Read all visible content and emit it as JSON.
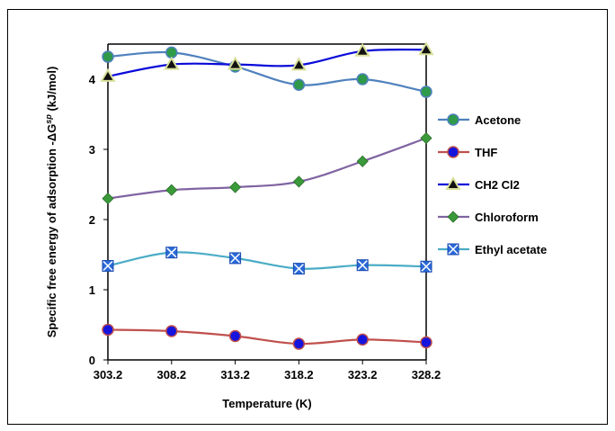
{
  "chart_data": {
    "type": "line",
    "xlabel": "Temperature (K)",
    "ylabel": "Specific free energy of adsorption  -ΔG",
    "ylabel_sup": "sp",
    "ylabel_unit": " (kJ/mol)",
    "x": [
      303.2,
      308.2,
      313.2,
      318.2,
      323.2,
      328.2
    ],
    "x_tick_labels": [
      "303.2",
      "308.2",
      "313.2",
      "318.2",
      "323.2",
      "328.2"
    ],
    "ylim": [
      0,
      4.5
    ],
    "y_ticks": [
      0,
      1,
      2,
      3,
      4
    ],
    "y_tick_labels": [
      "0",
      "1",
      "2",
      "3",
      "4"
    ],
    "grid": false,
    "legend_position": "right",
    "series": [
      {
        "name": "Acetone",
        "values": [
          4.32,
          4.38,
          4.18,
          3.92,
          4.0,
          3.82
        ],
        "line_color": "#4f81bd",
        "marker": "circle",
        "marker_color": "#2e9a4a"
      },
      {
        "name": "THF",
        "values": [
          0.43,
          0.41,
          0.34,
          0.23,
          0.29,
          0.25
        ],
        "line_color": "#c0504d",
        "marker": "circle",
        "marker_color": "#1414dc"
      },
      {
        "name": "CH2 Cl2",
        "values": [
          4.04,
          4.21,
          4.21,
          4.2,
          4.4,
          4.42
        ],
        "line_color": "#0a0ad8",
        "marker": "triangle",
        "marker_color": "#111111",
        "marker_fill_bg": "#d9e09a"
      },
      {
        "name": "Chloroform",
        "values": [
          2.3,
          2.42,
          2.46,
          2.54,
          2.83,
          3.16
        ],
        "line_color": "#8064a2",
        "marker": "diamond",
        "marker_color": "#3a9a3a"
      },
      {
        "name": "Ethyl acetate",
        "values": [
          1.34,
          1.53,
          1.45,
          1.3,
          1.35,
          1.33
        ],
        "line_color": "#4bacc6",
        "marker": "square-x",
        "marker_color": "#2a6ad8"
      }
    ]
  }
}
